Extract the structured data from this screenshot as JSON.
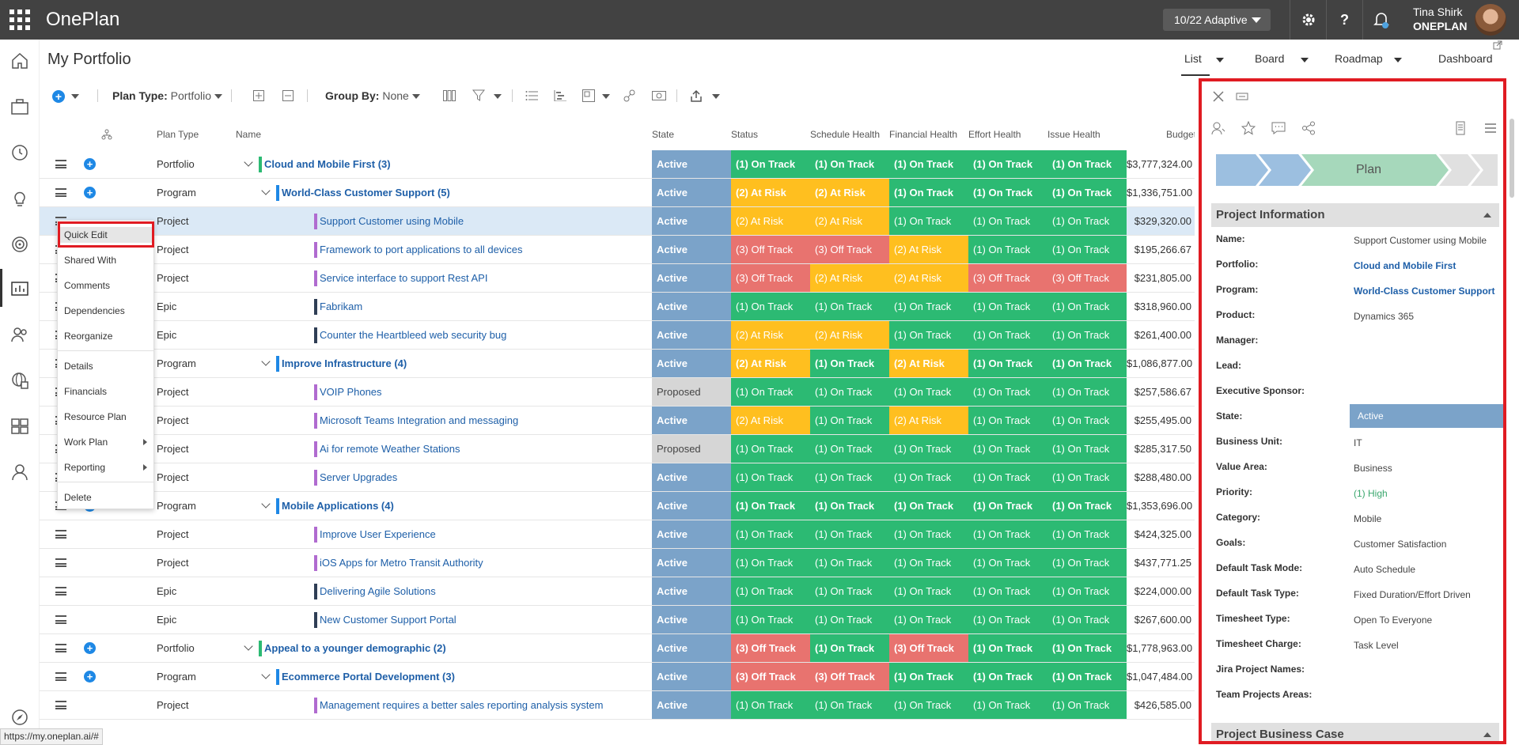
{
  "app": {
    "brand": "OnePlan",
    "period": "10/22 Adaptive",
    "user_name": "Tina Shirk",
    "user_org": "ONEPLAN"
  },
  "page": {
    "title": "My Portfolio"
  },
  "view_tabs": [
    "List",
    "Board",
    "Roadmap",
    "Dashboard"
  ],
  "toolbar": {
    "plan_type_label": "Plan Type:",
    "plan_type_value": "Portfolio",
    "group_by_label": "Group By:",
    "group_by_value": "None"
  },
  "columns": {
    "plan_type": "Plan Type",
    "name": "Name",
    "state": "State",
    "status": "Status",
    "schedule": "Schedule Health",
    "financial": "Financial Health",
    "effort": "Effort Health",
    "issue": "Issue Health",
    "budget": "Budget"
  },
  "rows": [
    {
      "type": "Portfolio",
      "name": "Cloud and Mobile First (3)",
      "level": 0,
      "state": "Active",
      "h": [
        "(1) On Track",
        "(1) On Track",
        "(1) On Track",
        "(1) On Track",
        "(1) On Track"
      ],
      "budget": "$3,777,324.00"
    },
    {
      "type": "Program",
      "name": "World-Class Customer Support (5)",
      "level": 1,
      "state": "Active",
      "h": [
        "(2) At Risk",
        "(2) At Risk",
        "(1) On Track",
        "(1) On Track",
        "(1) On Track"
      ],
      "budget": "$1,336,751.00"
    },
    {
      "type": "Project",
      "name": "Support Customer using Mobile",
      "level": 2,
      "state": "Active",
      "h": [
        "(2) At Risk",
        "(2) At Risk",
        "(1) On Track",
        "(1) On Track",
        "(1) On Track"
      ],
      "budget": "$329,320.00"
    },
    {
      "type": "Project",
      "name": "Framework to port applications to all devices",
      "level": 2,
      "state": "Active",
      "h": [
        "(3) Off Track",
        "(3) Off Track",
        "(2) At Risk",
        "(1) On Track",
        "(1) On Track"
      ],
      "budget": "$195,266.67"
    },
    {
      "type": "Project",
      "name": "Service interface to support Rest API",
      "level": 2,
      "state": "Active",
      "h": [
        "(3) Off Track",
        "(2) At Risk",
        "(2) At Risk",
        "(3) Off Track",
        "(3) Off Track"
      ],
      "budget": "$231,805.00"
    },
    {
      "type": "Epic",
      "name": "Fabrikam",
      "level": 2,
      "state": "Active",
      "h": [
        "(1) On Track",
        "(1) On Track",
        "(1) On Track",
        "(1) On Track",
        "(1) On Track"
      ],
      "budget": "$318,960.00"
    },
    {
      "type": "Epic",
      "name": "Counter the Heartbleed web security bug",
      "level": 2,
      "state": "Active",
      "h": [
        "(2) At Risk",
        "(2) At Risk",
        "(1) On Track",
        "(1) On Track",
        "(1) On Track"
      ],
      "budget": "$261,400.00"
    },
    {
      "type": "Program",
      "name": "Improve Infrastructure (4)",
      "level": 1,
      "state": "Active",
      "h": [
        "(2) At Risk",
        "(1) On Track",
        "(2) At Risk",
        "(1) On Track",
        "(1) On Track"
      ],
      "budget": "$1,086,877.00"
    },
    {
      "type": "Project",
      "name": "VOIP Phones",
      "level": 2,
      "state": "Proposed",
      "h": [
        "(1) On Track",
        "(1) On Track",
        "(1) On Track",
        "(1) On Track",
        "(1) On Track"
      ],
      "budget": "$257,586.67"
    },
    {
      "type": "Project",
      "name": "Microsoft Teams Integration and messaging",
      "level": 2,
      "state": "Active",
      "h": [
        "(2) At Risk",
        "(1) On Track",
        "(2) At Risk",
        "(1) On Track",
        "(1) On Track"
      ],
      "budget": "$255,495.00"
    },
    {
      "type": "Project",
      "name": "Ai for remote Weather Stations",
      "level": 2,
      "state": "Proposed",
      "h": [
        "(1) On Track",
        "(1) On Track",
        "(1) On Track",
        "(1) On Track",
        "(1) On Track"
      ],
      "budget": "$285,317.50"
    },
    {
      "type": "Project",
      "name": "Server Upgrades",
      "level": 2,
      "state": "Active",
      "h": [
        "(1) On Track",
        "(1) On Track",
        "(1) On Track",
        "(1) On Track",
        "(1) On Track"
      ],
      "budget": "$288,480.00"
    },
    {
      "type": "Program",
      "name": "Mobile Applications (4)",
      "level": 1,
      "state": "Active",
      "h": [
        "(1) On Track",
        "(1) On Track",
        "(1) On Track",
        "(1) On Track",
        "(1) On Track"
      ],
      "budget": "$1,353,696.00"
    },
    {
      "type": "Project",
      "name": "Improve User Experience",
      "level": 2,
      "state": "Active",
      "h": [
        "(1) On Track",
        "(1) On Track",
        "(1) On Track",
        "(1) On Track",
        "(1) On Track"
      ],
      "budget": "$424,325.00"
    },
    {
      "type": "Project",
      "name": "iOS Apps for Metro Transit Authority",
      "level": 2,
      "state": "Active",
      "h": [
        "(1) On Track",
        "(1) On Track",
        "(1) On Track",
        "(1) On Track",
        "(1) On Track"
      ],
      "budget": "$437,771.25"
    },
    {
      "type": "Epic",
      "name": "Delivering Agile Solutions",
      "level": 2,
      "state": "Active",
      "h": [
        "(1) On Track",
        "(1) On Track",
        "(1) On Track",
        "(1) On Track",
        "(1) On Track"
      ],
      "budget": "$224,000.00"
    },
    {
      "type": "Epic",
      "name": "New Customer Support Portal",
      "level": 2,
      "state": "Active",
      "h": [
        "(1) On Track",
        "(1) On Track",
        "(1) On Track",
        "(1) On Track",
        "(1) On Track"
      ],
      "budget": "$267,600.00"
    },
    {
      "type": "Portfolio",
      "name": "Appeal to a younger demographic (2)",
      "level": 0,
      "state": "Active",
      "h": [
        "(3) Off Track",
        "(1) On Track",
        "(3) Off Track",
        "(1) On Track",
        "(1) On Track"
      ],
      "budget": "$1,778,963.00"
    },
    {
      "type": "Program",
      "name": "Ecommerce Portal Development (3)",
      "level": 1,
      "state": "Active",
      "h": [
        "(3) Off Track",
        "(3) Off Track",
        "(1) On Track",
        "(1) On Track",
        "(1) On Track"
      ],
      "budget": "$1,047,484.00"
    },
    {
      "type": "Project",
      "name": "Management requires a better sales reporting analysis system",
      "level": 2,
      "state": "Active",
      "h": [
        "(1) On Track",
        "(1) On Track",
        "(1) On Track",
        "(1) On Track",
        "(1) On Track"
      ],
      "budget": "$426,585.00"
    }
  ],
  "context_menu": [
    "Quick Edit",
    "Shared With",
    "Comments",
    "Dependencies",
    "Reorganize",
    "Details",
    "Financials",
    "Resource Plan",
    "Work Plan",
    "Reporting",
    "Delete"
  ],
  "panel": {
    "stage": "Plan",
    "section_info": "Project Information",
    "section_case": "Project Business Case",
    "fields": [
      {
        "label": "Name:",
        "value": "Support Customer using Mobile",
        "style": ""
      },
      {
        "label": "Portfolio:",
        "value": "Cloud and Mobile First",
        "style": "link"
      },
      {
        "label": "Program:",
        "value": "World-Class Customer Support",
        "style": "link"
      },
      {
        "label": "Product:",
        "value": "Dynamics 365",
        "style": ""
      },
      {
        "label": "Manager:",
        "value": "",
        "style": ""
      },
      {
        "label": "Lead:",
        "value": "",
        "style": ""
      },
      {
        "label": "Executive Sponsor:",
        "value": "",
        "style": ""
      },
      {
        "label": "State:",
        "value": "Active",
        "style": "state"
      },
      {
        "label": "Business Unit:",
        "value": "IT",
        "style": ""
      },
      {
        "label": "Value Area:",
        "value": "Business",
        "style": ""
      },
      {
        "label": "Priority:",
        "value": "(1) High",
        "style": "green"
      },
      {
        "label": "Category:",
        "value": "Mobile",
        "style": ""
      },
      {
        "label": "Goals:",
        "value": "Customer Satisfaction",
        "style": ""
      },
      {
        "label": "Default Task Mode:",
        "value": "Auto Schedule",
        "style": ""
      },
      {
        "label": "Default Task Type:",
        "value": "Fixed Duration/Effort Driven",
        "style": ""
      },
      {
        "label": "Timesheet Type:",
        "value": "Open To Everyone",
        "style": ""
      },
      {
        "label": "Timesheet Charge:",
        "value": "Task Level",
        "style": ""
      },
      {
        "label": "Jira Project Names:",
        "value": "",
        "style": ""
      },
      {
        "label": "Team Projects Areas:",
        "value": "",
        "style": ""
      }
    ]
  },
  "status_url": "https://my.oneplan.ai/#",
  "colors": {
    "on_track": "#2cba73",
    "at_risk": "#ffbf1f",
    "off_track": "#e8736f",
    "active": "#7ba3c9",
    "proposed": "#d6d6d6",
    "highlight": "#e01b22"
  }
}
